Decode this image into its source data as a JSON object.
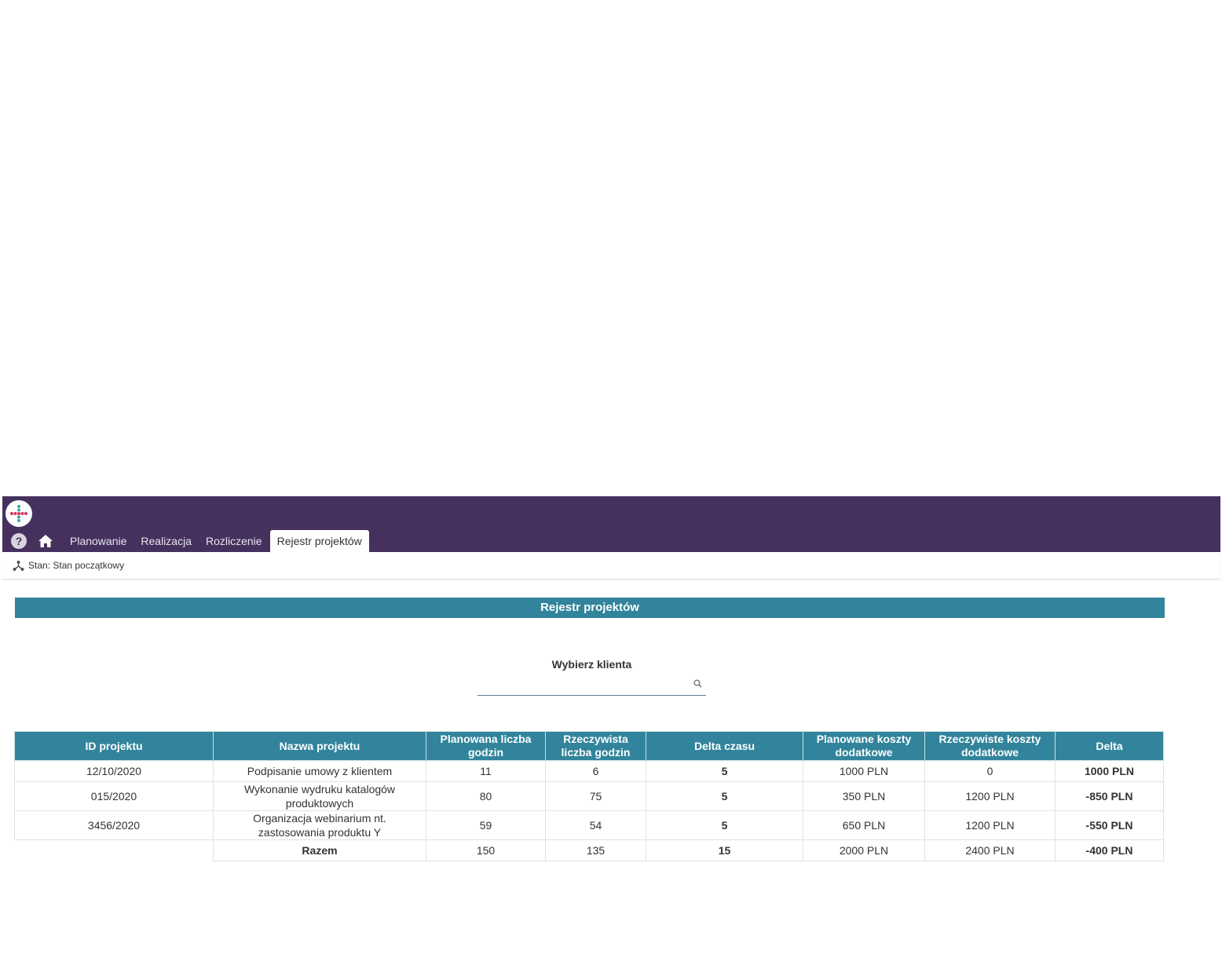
{
  "app": {
    "nav": {
      "items": [
        "Planowanie",
        "Realizacja",
        "Rozliczenie",
        "Rejestr projektów"
      ],
      "active": "Rejestr projektów"
    },
    "status": "Stan: Stan początkowy",
    "colors": {
      "topbar": "#46315e",
      "accent": "#31849b",
      "positive": "#23a04e",
      "negative": "#b21f24"
    }
  },
  "section": {
    "title": "Rejestr projektów"
  },
  "client": {
    "label": "Wybierz klienta",
    "value": "",
    "placeholder": ""
  },
  "table": {
    "headers": [
      "ID projektu",
      "Nazwa projektu",
      "Planowana liczba godzin",
      "Rzeczywista liczba godzin",
      "Delta czasu",
      "Planowane koszty dodatkowe",
      "Rzeczywiste koszty dodatkowe",
      "Delta"
    ],
    "rows": [
      {
        "id": "12/10/2020",
        "name": "Podpisanie umowy z klientem",
        "planned_hours": "11",
        "actual_hours": "6",
        "time_delta": "5",
        "planned_costs": "1000 PLN",
        "actual_costs": "0",
        "delta": "1000 PLN"
      },
      {
        "id": "015/2020",
        "name": "Wykonanie wydruku katalogów produktowych",
        "planned_hours": "80",
        "actual_hours": "75",
        "time_delta": "5",
        "planned_costs": "350 PLN",
        "actual_costs": "1200 PLN",
        "delta": "-850 PLN"
      },
      {
        "id": "3456/2020",
        "name": "Organizacja webinarium nt. zastosowania produktu Y",
        "planned_hours": "59",
        "actual_hours": "54",
        "time_delta": "5",
        "planned_costs": "650 PLN",
        "actual_costs": "1200 PLN",
        "delta": "-550 PLN"
      }
    ],
    "total": {
      "label": "Razem",
      "planned_hours": "150",
      "actual_hours": "135",
      "time_delta": "15",
      "planned_costs": "2000 PLN",
      "actual_costs": "2400 PLN",
      "delta": "-400 PLN"
    }
  }
}
